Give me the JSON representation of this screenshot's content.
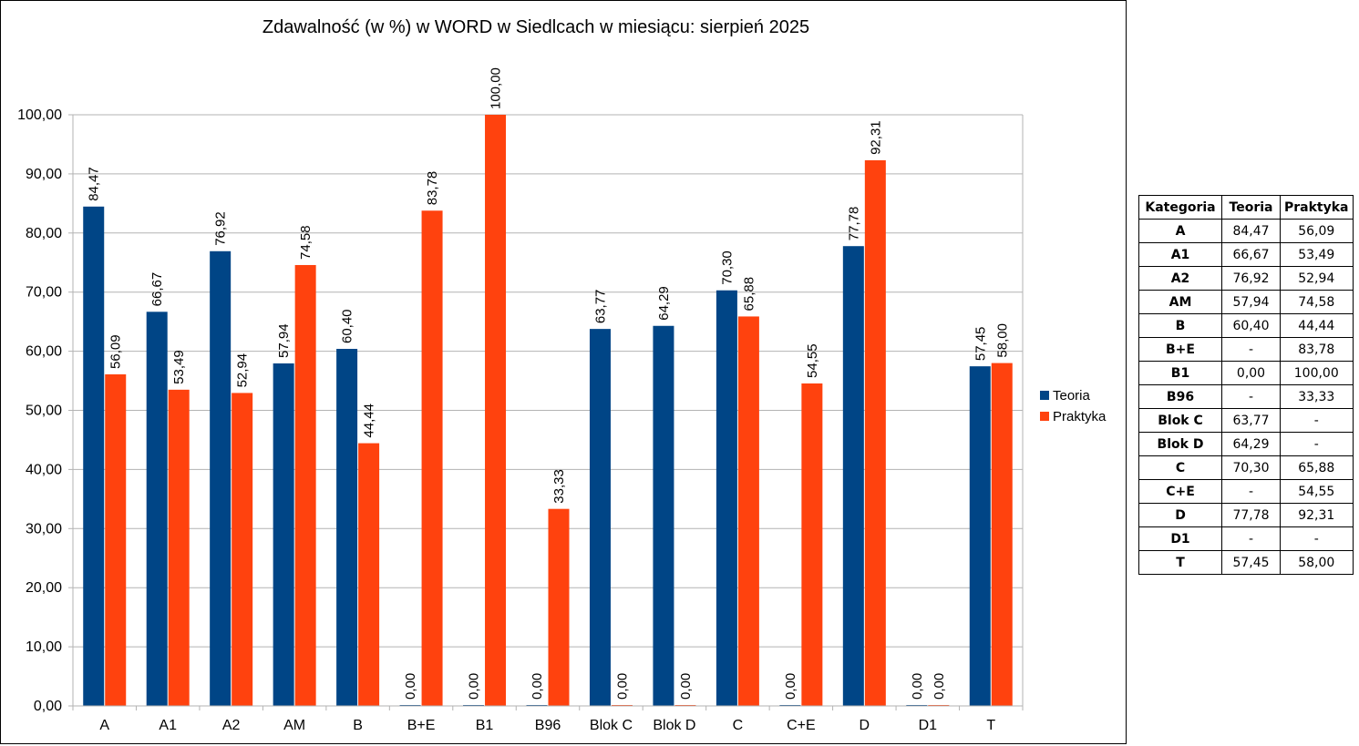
{
  "chart_data": {
    "type": "bar",
    "title": "Zdawalność (w %) w WORD w Siedlcach w miesiącu: sierpień 2025",
    "categories": [
      "A",
      "A1",
      "A2",
      "AM",
      "B",
      "B+E",
      "B1",
      "B96",
      "Blok C",
      "Blok D",
      "C",
      "C+E",
      "D",
      "D1",
      "T"
    ],
    "series": [
      {
        "name": "Teoria",
        "color": "#004586",
        "values": [
          84.47,
          66.67,
          76.92,
          57.94,
          60.4,
          0.0,
          0.0,
          0.0,
          63.77,
          64.29,
          70.3,
          0.0,
          77.78,
          0.0,
          57.45
        ],
        "labels": [
          "84,47",
          "66,67",
          "76,92",
          "57,94",
          "60,40",
          "0,00",
          "0,00",
          "0,00",
          "63,77",
          "64,29",
          "70,30",
          "0,00",
          "77,78",
          "0,00",
          "57,45"
        ]
      },
      {
        "name": "Praktyka",
        "color": "#ff420e",
        "values": [
          56.09,
          53.49,
          52.94,
          74.58,
          44.44,
          83.78,
          100.0,
          33.33,
          0.0,
          0.0,
          65.88,
          54.55,
          92.31,
          0.0,
          58.0
        ],
        "labels": [
          "56,09",
          "53,49",
          "52,94",
          "74,58",
          "44,44",
          "83,78",
          "100,00",
          "33,33",
          "0,00",
          "0,00",
          "65,88",
          "54,55",
          "92,31",
          "0,00",
          "58,00"
        ]
      }
    ],
    "ylim": [
      0,
      100
    ],
    "yticks": [
      "0,00",
      "10,00",
      "20,00",
      "30,00",
      "40,00",
      "50,00",
      "60,00",
      "70,00",
      "80,00",
      "90,00",
      "100,00"
    ],
    "grid": true,
    "legend": "right",
    "xlabel": "",
    "ylabel": ""
  },
  "table": {
    "headers": [
      "Kategoria",
      "Teoria",
      "Praktyka"
    ],
    "rows": [
      [
        "A",
        "84,47",
        "56,09"
      ],
      [
        "A1",
        "66,67",
        "53,49"
      ],
      [
        "A2",
        "76,92",
        "52,94"
      ],
      [
        "AM",
        "57,94",
        "74,58"
      ],
      [
        "B",
        "60,40",
        "44,44"
      ],
      [
        "B+E",
        "-",
        "83,78"
      ],
      [
        "B1",
        "0,00",
        "100,00"
      ],
      [
        "B96",
        "-",
        "33,33"
      ],
      [
        "Blok C",
        "63,77",
        "-"
      ],
      [
        "Blok D",
        "64,29",
        "-"
      ],
      [
        "C",
        "70,30",
        "65,88"
      ],
      [
        "C+E",
        "-",
        "54,55"
      ],
      [
        "D",
        "77,78",
        "92,31"
      ],
      [
        "D1",
        "-",
        "-"
      ],
      [
        "T",
        "57,45",
        "58,00"
      ]
    ]
  }
}
